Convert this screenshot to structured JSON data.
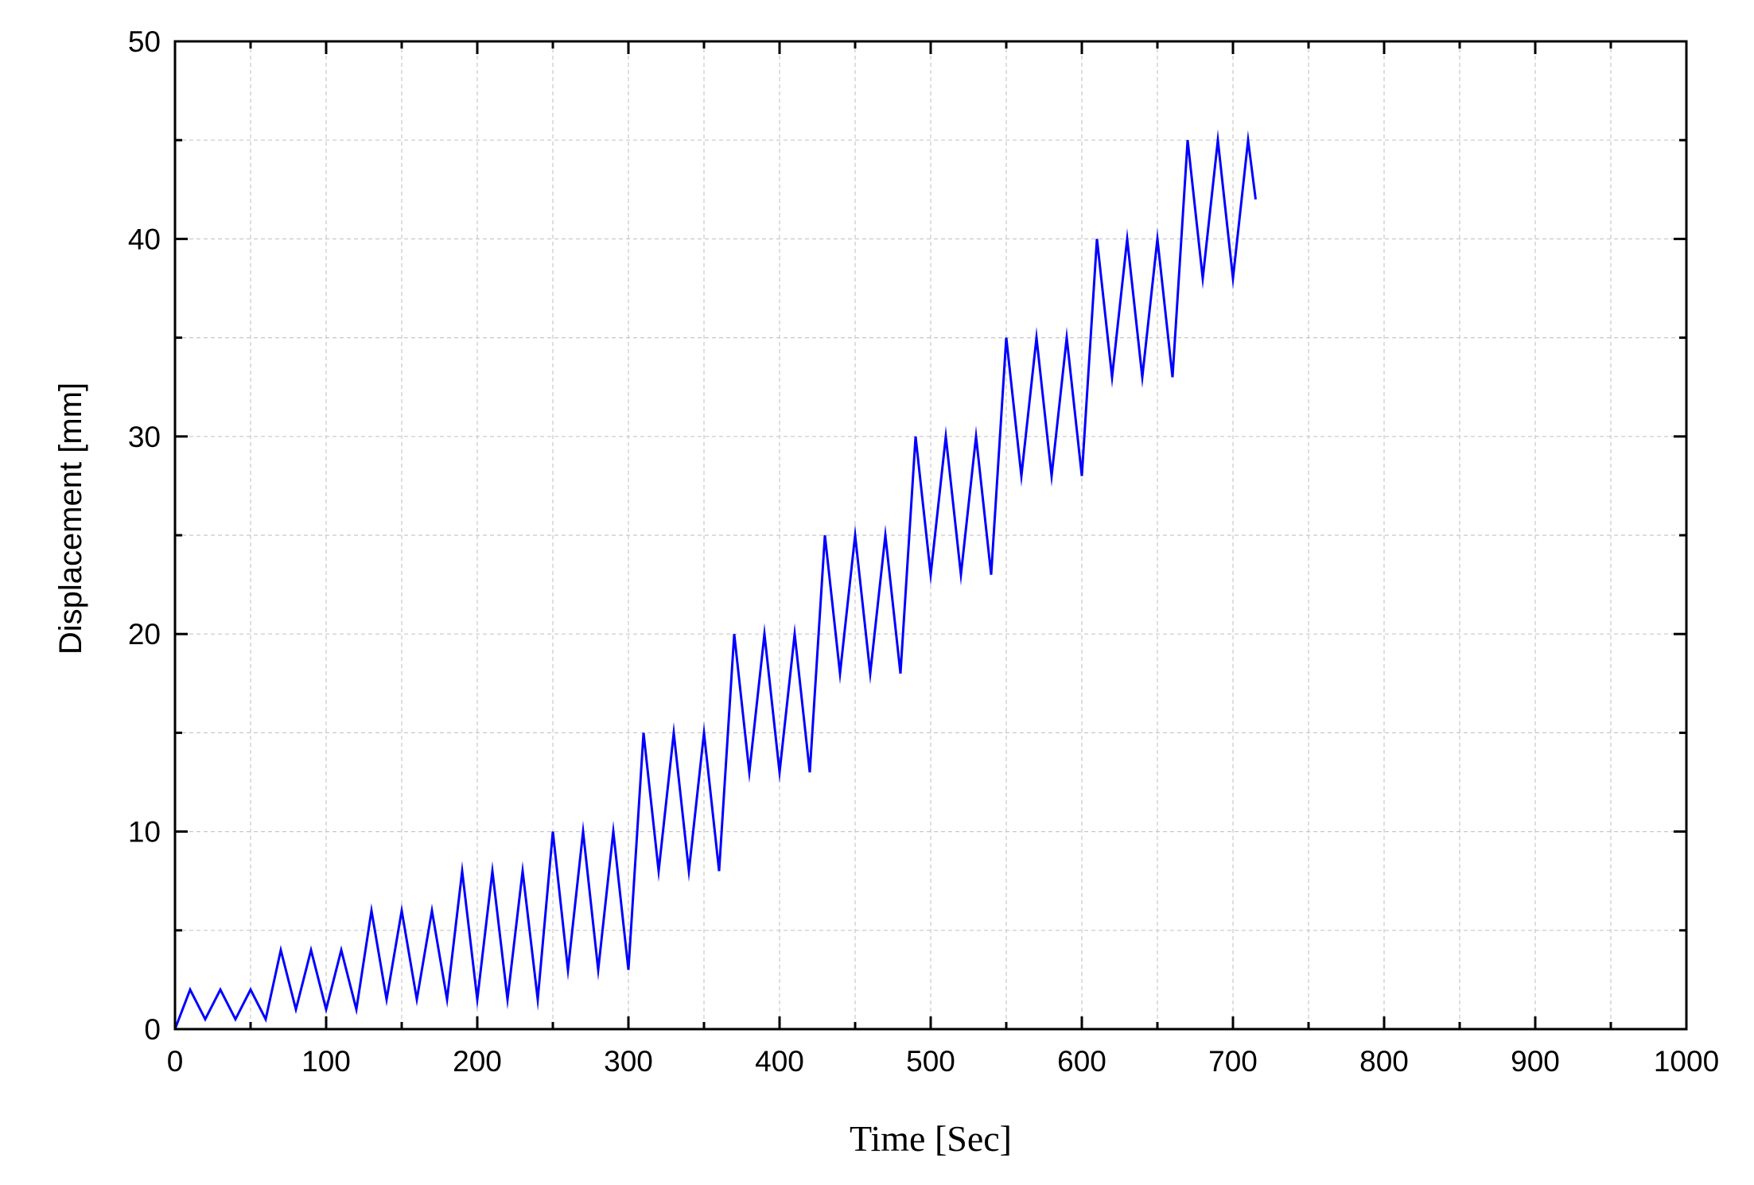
{
  "chart_data": {
    "type": "line",
    "xlabel": "Time [Sec]",
    "ylabel": "Displacement [mm]",
    "xlim": [
      0,
      1000
    ],
    "ylim": [
      0,
      50
    ],
    "x_ticks": [
      0,
      100,
      200,
      300,
      400,
      500,
      600,
      700,
      800,
      900,
      1000
    ],
    "y_ticks": [
      0,
      10,
      20,
      30,
      40,
      50
    ],
    "x_minor_step": 50,
    "y_minor_step": 5,
    "grid": true,
    "legend": "none",
    "line_color": "#0000ff",
    "series": [
      {
        "x": [
          0,
          10,
          20,
          30,
          40,
          50,
          60,
          70,
          80,
          90,
          100,
          110,
          120,
          130,
          140,
          150,
          160,
          170,
          180,
          190,
          200,
          210,
          220,
          230,
          240,
          250,
          260,
          270,
          280,
          290,
          300,
          310,
          320,
          330,
          340,
          350,
          360,
          370,
          380,
          390,
          400,
          410,
          420,
          430,
          440,
          450,
          460,
          470,
          480,
          490,
          500,
          510,
          520,
          530,
          540,
          550,
          560,
          570,
          580,
          590,
          600,
          610,
          620,
          630,
          640,
          650,
          660,
          670,
          680,
          690,
          700,
          710,
          715
        ],
        "y": [
          0,
          2,
          0.5,
          2,
          0.5,
          2,
          0.5,
          4,
          1,
          4,
          1,
          4,
          1,
          6,
          1.5,
          6,
          1.5,
          6,
          1.5,
          8,
          1.5,
          8,
          1.5,
          8,
          1.5,
          10,
          3,
          10,
          3,
          10,
          3,
          15,
          8,
          15,
          8,
          15,
          8,
          20,
          13,
          20,
          13,
          20,
          13,
          25,
          18,
          25,
          18,
          25,
          18,
          30,
          23,
          30,
          23,
          30,
          23,
          35,
          28,
          35,
          28,
          35,
          28,
          40,
          33,
          40,
          33,
          40,
          33,
          45,
          38,
          45,
          38,
          45,
          42
        ]
      }
    ]
  }
}
